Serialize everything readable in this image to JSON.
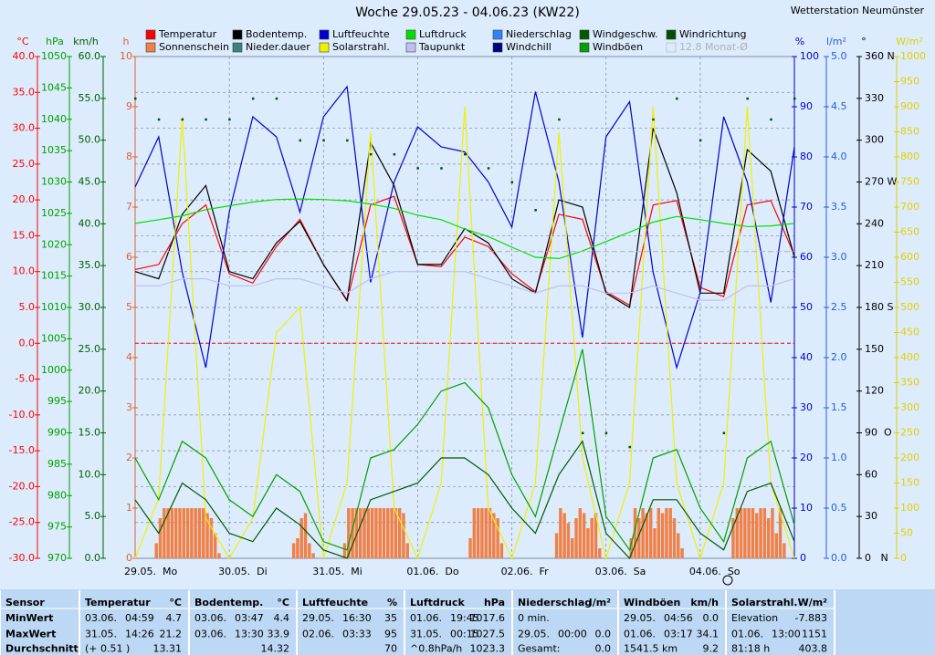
{
  "chart_data": {
    "type": "line",
    "title": "Woche 29.05.23 - 04.06.23 (KW22)",
    "subtitle": "Wetterstation Neumünster",
    "xlim": [
      0,
      168
    ],
    "xticks": [
      {
        "value": 0,
        "label": "29.05.  Mo"
      },
      {
        "value": 24,
        "label": "30.05.  Di"
      },
      {
        "value": 48,
        "label": "31.05.  Mi"
      },
      {
        "value": 72,
        "label": "01.06.  Do"
      },
      {
        "value": 96,
        "label": "02.06.  Fr"
      },
      {
        "value": 120,
        "label": "03.06.  Sa"
      },
      {
        "value": 144,
        "label": "04.06.  So"
      }
    ],
    "grid": true,
    "grid_axis": "°C",
    "axes": [
      {
        "unit": "°C",
        "color": "#ff0000",
        "lim": [
          -30,
          40
        ],
        "ticks": [
          {
            "value": 40,
            "label": "40.0"
          },
          {
            "value": 35,
            "label": "35.0"
          },
          {
            "value": 30,
            "label": "30.0"
          },
          {
            "value": 25,
            "label": "25.0"
          },
          {
            "value": 20,
            "label": "20.0"
          },
          {
            "value": 15,
            "label": "15.0"
          },
          {
            "value": 10,
            "label": "10.0"
          },
          {
            "value": 5,
            "label": "5.0"
          },
          {
            "value": 0,
            "label": "0.0"
          },
          {
            "value": -5,
            "label": "-5.0"
          },
          {
            "value": -10,
            "label": "-10.0"
          },
          {
            "value": -15,
            "label": "-15.0"
          },
          {
            "value": -20,
            "label": "-20.0"
          },
          {
            "value": -25,
            "label": "-25.0"
          },
          {
            "value": -30,
            "label": "-30.0"
          }
        ]
      },
      {
        "unit": "hPa",
        "color": "#00a000",
        "lim": [
          970,
          1050
        ],
        "ticks": [
          1050,
          1045,
          1040,
          1035,
          1030,
          1025,
          1020,
          1015,
          1010,
          1005,
          1000,
          995,
          990,
          985,
          980,
          975,
          970
        ]
      },
      {
        "unit": "km/h",
        "color": "#006000",
        "lim": [
          0,
          60
        ],
        "ticks": [
          {
            "value": 60,
            "label": "60.0"
          },
          {
            "value": 55,
            "label": "55.0"
          },
          {
            "value": 50,
            "label": "50.0"
          },
          {
            "value": 45,
            "label": "45.0"
          },
          {
            "value": 40,
            "label": "40.0"
          },
          {
            "value": 35,
            "label": "35.0"
          },
          {
            "value": 30,
            "label": "30.0"
          },
          {
            "value": 25,
            "label": "25.0"
          },
          {
            "value": 20,
            "label": "20.0"
          },
          {
            "value": 15,
            "label": "15.0"
          },
          {
            "value": 10,
            "label": "10.0"
          },
          {
            "value": 5,
            "label": "5.0"
          },
          {
            "value": 0,
            "label": "0.0"
          }
        ]
      },
      {
        "unit": "h",
        "color": "#e06030",
        "lim": [
          0,
          10
        ],
        "ticks": [
          10,
          9,
          8,
          7,
          6,
          5,
          4,
          3,
          2,
          1,
          0
        ]
      },
      {
        "unit": "%",
        "color": "#0000d0",
        "lim": [
          0,
          100
        ],
        "ticks": [
          100,
          90,
          80,
          70,
          60,
          50,
          40,
          30,
          20,
          10,
          0
        ]
      },
      {
        "unit": "l/m²",
        "color": "#2060e0",
        "lim": [
          0,
          5
        ],
        "ticks": [
          {
            "value": 5,
            "label": "5.0"
          },
          {
            "value": 4.5,
            "label": "4.5"
          },
          {
            "value": 4,
            "label": "4.0"
          },
          {
            "value": 3.5,
            "label": "3.5"
          },
          {
            "value": 3,
            "label": "3.0"
          },
          {
            "value": 2.5,
            "label": "2.5"
          },
          {
            "value": 2,
            "label": "2.0"
          },
          {
            "value": 1.5,
            "label": "1.5"
          },
          {
            "value": 1,
            "label": "1.0"
          },
          {
            "value": 0.5,
            "label": "0.5"
          },
          {
            "value": 0,
            "label": "0.0"
          }
        ]
      },
      {
        "unit": "°",
        "color": "#000000",
        "lim": [
          0,
          360
        ],
        "ticks": [
          {
            "value": 360,
            "label": "360 N"
          },
          330,
          300,
          {
            "value": 270,
            "label": "270 W"
          },
          240,
          210,
          {
            "value": 180,
            "label": "180 S"
          },
          150,
          120,
          {
            "value": 90,
            "label": "90  O"
          },
          60,
          30,
          {
            "value": 0,
            "label": "0   N"
          }
        ]
      },
      {
        "unit": "W/m²",
        "color": "#e0d000",
        "lim": [
          0,
          1000
        ],
        "ticks": [
          1000,
          950,
          900,
          850,
          800,
          750,
          700,
          650,
          600,
          550,
          500,
          450,
          400,
          350,
          300,
          250,
          200,
          150,
          100,
          50,
          0
        ]
      }
    ],
    "zero_line": {
      "axis": "°C",
      "value": 0,
      "color": "#ff0000"
    },
    "x": [
      0,
      6,
      12,
      18,
      24,
      30,
      36,
      42,
      48,
      54,
      60,
      66,
      72,
      78,
      84,
      90,
      96,
      102,
      108,
      114,
      120,
      126,
      132,
      138,
      144,
      150,
      156,
      162,
      168
    ],
    "series": [
      {
        "name": "Temperatur",
        "color": "#ff0000",
        "axis": "°C",
        "style": "line",
        "values": [
          10.3,
          11,
          16.7,
          19.3,
          9.7,
          8.4,
          13.5,
          17.3,
          11,
          5.9,
          19.3,
          20.5,
          11,
          10.7,
          14.8,
          13.5,
          9.7,
          7.2,
          18,
          17.3,
          7.2,
          5.3,
          19.3,
          19.9,
          7.8,
          6.5,
          19.3,
          19.9,
          12.3
        ]
      },
      {
        "name": "Sonnenschein",
        "color": "#f08048",
        "axis": "h",
        "style": "bars",
        "x": [
          0,
          1,
          2,
          3,
          4,
          5,
          6,
          7,
          8,
          9,
          10,
          11,
          12,
          13,
          14,
          15,
          16,
          17,
          18,
          19,
          20,
          21,
          22,
          23,
          24,
          25,
          26,
          27,
          28,
          29,
          30,
          31,
          32,
          33,
          34,
          35,
          36,
          37,
          38,
          39,
          40,
          41,
          42,
          43,
          44,
          45,
          46,
          47,
          48,
          49,
          50,
          51,
          52,
          53,
          54,
          55,
          56,
          57,
          58,
          59,
          60,
          61,
          62,
          63,
          64,
          65,
          66,
          67,
          68,
          69,
          70,
          71,
          72,
          73,
          74,
          75,
          76,
          77,
          78,
          79,
          80,
          81,
          82,
          83,
          84,
          85,
          86,
          87,
          88,
          89,
          90,
          91,
          92,
          93,
          94,
          95,
          96,
          97,
          98,
          99,
          100,
          101,
          102,
          103,
          104,
          105,
          106,
          107,
          108,
          109,
          110,
          111,
          112,
          113,
          114,
          115,
          116,
          117,
          118,
          119,
          120,
          121,
          122,
          123,
          124,
          125,
          126,
          127,
          128,
          129,
          130,
          131,
          132,
          133,
          134,
          135,
          136,
          137,
          138,
          139,
          140,
          141,
          142,
          143,
          144,
          145,
          146,
          147,
          148,
          149,
          150,
          151,
          152,
          153,
          154,
          155,
          156,
          157,
          158,
          159,
          160,
          161,
          162,
          163,
          164,
          165,
          166,
          167
        ],
        "values": [
          0,
          0,
          0,
          0,
          0,
          0.3,
          0.8,
          1,
          1,
          1,
          1,
          1,
          1,
          1,
          1,
          1,
          1,
          1,
          0.9,
          0.8,
          0.5,
          0.1,
          0,
          0,
          0,
          0,
          0,
          0,
          0,
          0,
          0,
          0,
          0,
          0,
          0,
          0,
          0,
          0,
          0,
          0,
          0.3,
          0.4,
          0.8,
          0.9,
          0.3,
          0.1,
          0,
          0,
          0,
          0,
          0,
          0,
          0,
          0.3,
          1,
          1,
          1,
          1,
          1,
          1,
          1,
          1,
          1,
          1,
          1,
          1,
          1,
          1,
          0.9,
          0.3,
          0,
          0,
          0,
          0,
          0,
          0,
          0,
          0,
          0,
          0,
          0,
          0,
          0,
          0,
          0,
          0.4,
          1,
          1,
          1,
          1,
          1,
          0.9,
          0.8,
          0.3,
          0,
          0,
          0,
          0,
          0,
          0,
          0,
          0,
          0,
          0,
          0,
          0,
          0,
          0.5,
          1,
          0.9,
          0.7,
          0.4,
          0.8,
          1,
          0.9,
          0.6,
          0.8,
          0.9,
          0.2,
          0,
          0,
          0,
          0,
          0,
          0,
          0,
          0.4,
          1,
          0.8,
          1,
          0.9,
          1,
          0.6,
          1,
          0.9,
          1,
          1,
          0.8,
          0.5,
          0.2,
          0,
          0,
          0,
          0,
          0,
          0,
          0,
          0,
          0,
          0,
          0,
          0,
          0.8,
          1,
          1,
          1,
          1,
          1,
          0.9,
          1,
          1,
          0.8,
          1,
          0.5,
          1,
          0.3,
          0,
          0
        ]
      },
      {
        "name": "Bodentemp.",
        "color": "#000000",
        "axis": "°C",
        "style": "line",
        "values": [
          10,
          9,
          18,
          22,
          10,
          9,
          14,
          17,
          11,
          6,
          28,
          22,
          11,
          11,
          16,
          14,
          9,
          7,
          20,
          19,
          7,
          5,
          30,
          21,
          7,
          7,
          27,
          24,
          12
        ]
      },
      {
        "name": "Nieder.dauer",
        "color": "#408080"
      },
      {
        "name": "Luftfeuchte",
        "color": "#0000d0",
        "axis": "%",
        "style": "line",
        "values": [
          74,
          84,
          57,
          38,
          69,
          88,
          84,
          69,
          88,
          94,
          55,
          75,
          86,
          82,
          81,
          75,
          66,
          93,
          75,
          44,
          84,
          91,
          57,
          38,
          53,
          88,
          75,
          51,
          82
        ]
      },
      {
        "name": "Solarstrahl.",
        "color": "#f0f000",
        "axis": "W/m²",
        "style": "line",
        "values": [
          0,
          120,
          880,
          80,
          0,
          80,
          450,
          500,
          0,
          150,
          850,
          100,
          0,
          150,
          900,
          100,
          0,
          150,
          850,
          200,
          0,
          150,
          900,
          150,
          0,
          150,
          900,
          150,
          0
        ]
      },
      {
        "name": "Luftdruck",
        "color": "#00e000",
        "axis": "hPa",
        "style": "line",
        "values": [
          1023.4,
          1024,
          1024.6,
          1025.6,
          1026.2,
          1026.8,
          1027.2,
          1027.3,
          1027.2,
          1027,
          1026.5,
          1025.8,
          1024.7,
          1024,
          1022.5,
          1021.3,
          1019.6,
          1018,
          1017.8,
          1019,
          1020.5,
          1022,
          1023.6,
          1024.5,
          1024,
          1023.4,
          1022.9,
          1023,
          1023.4
        ]
      },
      {
        "name": "Taupunkt",
        "color": "#c0c0f0",
        "axis": "°C",
        "style": "line",
        "values": [
          8,
          8,
          9,
          9,
          8,
          8,
          9,
          9,
          8,
          7,
          9,
          10,
          10,
          10,
          10,
          9,
          8,
          7,
          8,
          8,
          7,
          7,
          8,
          7,
          6,
          6,
          8,
          8,
          9
        ]
      },
      {
        "name": "Niederschlag",
        "color": "#3080ff"
      },
      {
        "name": "Windchill",
        "color": "#000080"
      },
      {
        "name": "Windgeschw.",
        "color": "#005a00",
        "axis": "km/h",
        "style": "line",
        "values": [
          7,
          3,
          9,
          7,
          3,
          2,
          6,
          4,
          1,
          0,
          7,
          8,
          9,
          12,
          12,
          10,
          6,
          3,
          10,
          14,
          3,
          0,
          7,
          7,
          3,
          1,
          8,
          9,
          2
        ]
      },
      {
        "name": "Windböen",
        "color": "#00a000",
        "axis": "km/h",
        "style": "line",
        "values": [
          12,
          7,
          14,
          12,
          7,
          5,
          10,
          8,
          2,
          1,
          12,
          13,
          16,
          20,
          21,
          18,
          10,
          5,
          15,
          25,
          5,
          1,
          12,
          13,
          6,
          2,
          12,
          14,
          4
        ]
      },
      {
        "name": "Windrichtung",
        "color": "#005000",
        "axis": "°",
        "style": "dots",
        "values": [
          330,
          315,
          315,
          315,
          315,
          330,
          330,
          300,
          300,
          300,
          290,
          290,
          280,
          280,
          290,
          280,
          270,
          250,
          315,
          90,
          90,
          80,
          315,
          330,
          300,
          90,
          330,
          315,
          330
        ]
      },
      {
        "name": "12.8 Monat-Ø",
        "color": "#b0b0b0",
        "axis": "°C",
        "style": "constant",
        "value": 12.8,
        "disabled": true
      }
    ]
  },
  "table": {
    "header_label": "Sensor",
    "columns": [
      {
        "name": "Temperatur",
        "unit": "°C"
      },
      {
        "name": "Bodentemp.",
        "unit": "°C"
      },
      {
        "name": "Luftfeuchte",
        "unit": "%"
      },
      {
        "name": "Luftdruck",
        "unit": "hPa"
      },
      {
        "name": "Niederschlag",
        "unit": "l/m²"
      },
      {
        "name": "Windböen",
        "unit": "km/h"
      },
      {
        "name": "Solarstrahl.",
        "unit": "W/m²"
      }
    ],
    "rows": [
      {
        "label": "MinWert",
        "cells": [
          {
            "date": "03.06.",
            "time": "04:59",
            "value": "4.7"
          },
          {
            "date": "03.06.",
            "time": "03:47",
            "value": "4.4"
          },
          {
            "date": "29.05.",
            "time": "16:30",
            "value": "35"
          },
          {
            "date": "01.06.",
            "time": "19:45",
            "value": "1017.6"
          },
          {
            "text": "0 min."
          },
          {
            "date": "29.05.",
            "time": "04:56",
            "value": "0.0"
          },
          {
            "text": "Elevation",
            "value": "-7.883"
          }
        ]
      },
      {
        "label": "MaxWert",
        "cells": [
          {
            "date": "31.05.",
            "time": "14:26",
            "value": "21.2"
          },
          {
            "date": "03.06.",
            "time": "13:30",
            "value": "33.9"
          },
          {
            "date": "02.06.",
            "time": "03:33",
            "value": "95"
          },
          {
            "date": "31.05.",
            "time": "00:15",
            "value": "1027.5"
          },
          {
            "date": "29.05.",
            "time": "00:00",
            "value": "0.0"
          },
          {
            "date": "01.06.",
            "time": "03:17",
            "value": "34.1"
          },
          {
            "date": "01.06.",
            "time": "13:00",
            "value": "1151"
          }
        ]
      },
      {
        "label": "Durchschnitt",
        "cells": [
          {
            "text": "(+ 0.51 )",
            "value": "13.31"
          },
          {
            "value": "14.32"
          },
          {
            "value": "70"
          },
          {
            "text": "^0.8hPa/h",
            "value": "1023.3"
          },
          {
            "text": "Gesamt:",
            "value": "0.0"
          },
          {
            "text": "1541.5 km",
            "value": "9.2"
          },
          {
            "text": "81:18 h",
            "value": "403.8"
          }
        ]
      }
    ]
  }
}
